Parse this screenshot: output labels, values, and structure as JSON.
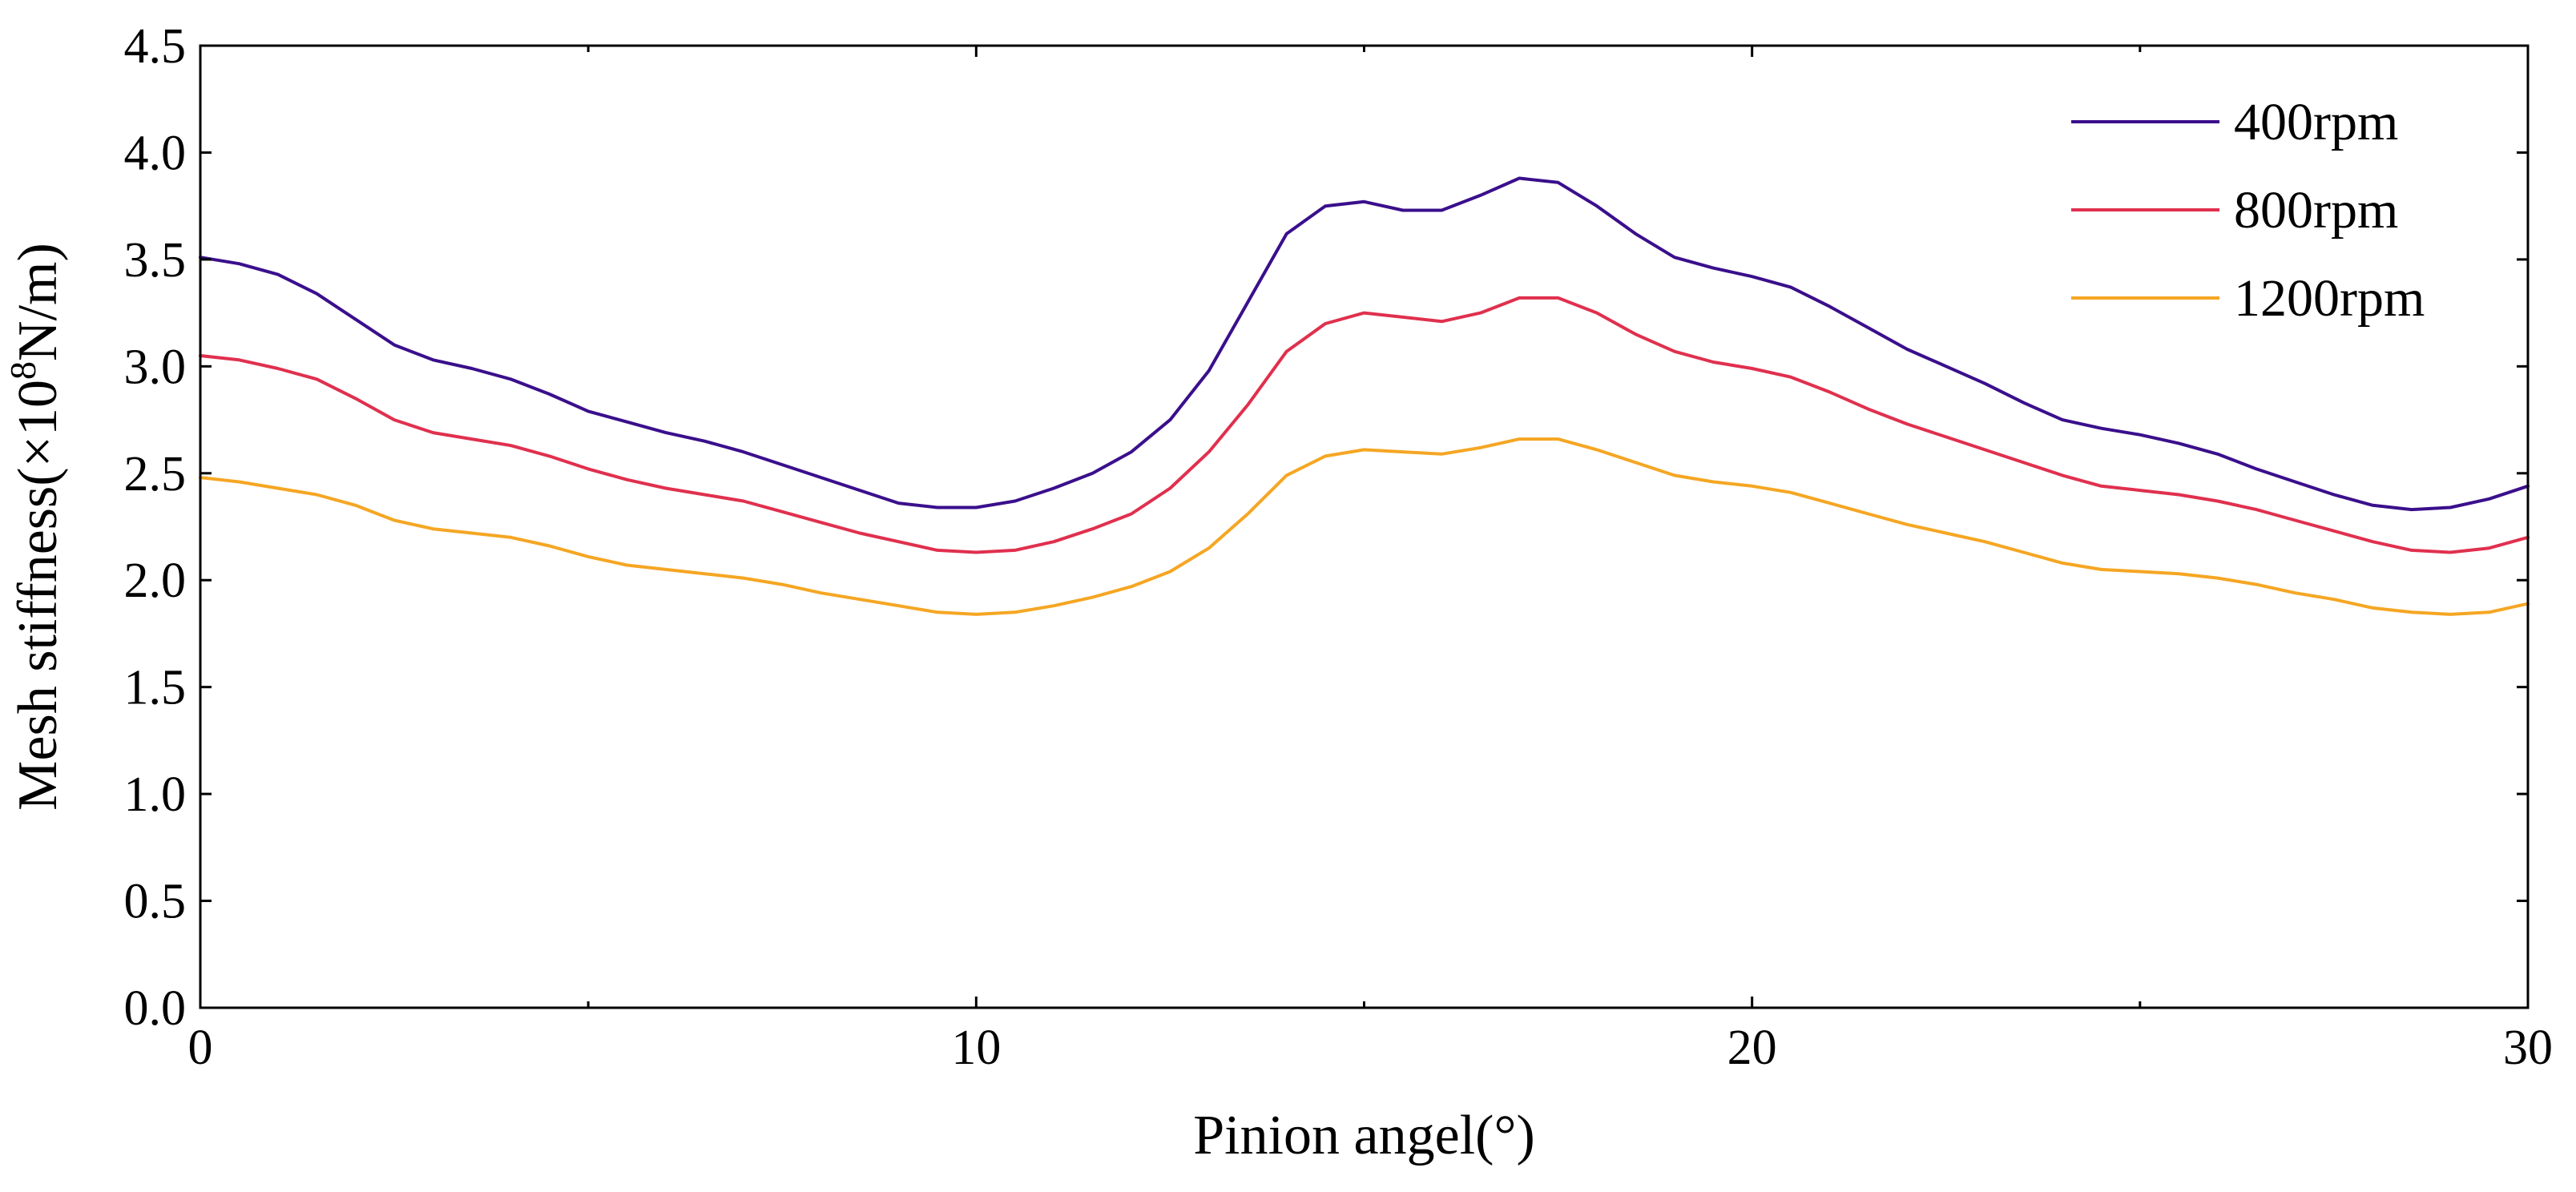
{
  "chart_data": {
    "type": "line",
    "title": "",
    "xlabel": "Pinion angel(°)",
    "ylabel_prefix": "Mesh stiffness(×10",
    "ylabel_exponent": "8",
    "ylabel_suffix": "N/m)",
    "xlim": [
      0,
      30
    ],
    "ylim": [
      0.0,
      4.5
    ],
    "x_ticks": [
      0,
      10,
      20,
      30
    ],
    "x_tick_labels": [
      "0",
      "10",
      "20",
      "30"
    ],
    "y_ticks": [
      0.0,
      0.5,
      1.0,
      1.5,
      2.0,
      2.5,
      3.0,
      3.5,
      4.0,
      4.5
    ],
    "y_tick_labels": [
      "0.0",
      "0.5",
      "1.0",
      "1.5",
      "2.0",
      "2.5",
      "3.0",
      "3.5",
      "4.0",
      "4.5"
    ],
    "grid": false,
    "legend_position": "top-right",
    "x": [
      0,
      0.5,
      1,
      1.5,
      2,
      2.5,
      3,
      3.5,
      4,
      4.5,
      5,
      5.5,
      6,
      6.5,
      7,
      7.5,
      8,
      8.5,
      9,
      9.5,
      10,
      10.5,
      11,
      11.5,
      12,
      12.5,
      13,
      13.5,
      14,
      14.5,
      15,
      15.5,
      16,
      16.5,
      17,
      17.5,
      18,
      18.5,
      19,
      19.5,
      20,
      20.5,
      21,
      21.5,
      22,
      22.5,
      23,
      23.5,
      24,
      24.5,
      25,
      25.5,
      26,
      26.5,
      27,
      27.5,
      28,
      28.5,
      29,
      29.5,
      30
    ],
    "series": [
      {
        "name": "400rpm",
        "color": "#3a0f8c",
        "values": [
          3.51,
          3.48,
          3.43,
          3.34,
          3.22,
          3.1,
          3.03,
          2.99,
          2.94,
          2.87,
          2.79,
          2.74,
          2.69,
          2.65,
          2.6,
          2.54,
          2.48,
          2.42,
          2.36,
          2.34,
          2.34,
          2.37,
          2.43,
          2.5,
          2.6,
          2.75,
          2.98,
          3.3,
          3.62,
          3.75,
          3.77,
          3.73,
          3.73,
          3.8,
          3.88,
          3.86,
          3.75,
          3.62,
          3.51,
          3.46,
          3.42,
          3.37,
          3.28,
          3.18,
          3.08,
          3.0,
          2.92,
          2.83,
          2.75,
          2.71,
          2.68,
          2.64,
          2.59,
          2.52,
          2.46,
          2.4,
          2.35,
          2.33,
          2.34,
          2.38,
          2.44
        ]
      },
      {
        "name": "800rpm",
        "color": "#e0304e",
        "values": [
          3.05,
          3.03,
          2.99,
          2.94,
          2.85,
          2.75,
          2.69,
          2.66,
          2.63,
          2.58,
          2.52,
          2.47,
          2.43,
          2.4,
          2.37,
          2.32,
          2.27,
          2.22,
          2.18,
          2.14,
          2.13,
          2.14,
          2.18,
          2.24,
          2.31,
          2.43,
          2.6,
          2.82,
          3.07,
          3.2,
          3.25,
          3.23,
          3.21,
          3.25,
          3.32,
          3.32,
          3.25,
          3.15,
          3.07,
          3.02,
          2.99,
          2.95,
          2.88,
          2.8,
          2.73,
          2.67,
          2.61,
          2.55,
          2.49,
          2.44,
          2.42,
          2.4,
          2.37,
          2.33,
          2.28,
          2.23,
          2.18,
          2.14,
          2.13,
          2.15,
          2.2
        ]
      },
      {
        "name": "1200rpm",
        "color": "#f5a623",
        "values": [
          2.48,
          2.46,
          2.43,
          2.4,
          2.35,
          2.28,
          2.24,
          2.22,
          2.2,
          2.16,
          2.11,
          2.07,
          2.05,
          2.03,
          2.01,
          1.98,
          1.94,
          1.91,
          1.88,
          1.85,
          1.84,
          1.85,
          1.88,
          1.92,
          1.97,
          2.04,
          2.15,
          2.31,
          2.49,
          2.58,
          2.61,
          2.6,
          2.59,
          2.62,
          2.66,
          2.66,
          2.61,
          2.55,
          2.49,
          2.46,
          2.44,
          2.41,
          2.36,
          2.31,
          2.26,
          2.22,
          2.18,
          2.13,
          2.08,
          2.05,
          2.04,
          2.03,
          2.01,
          1.98,
          1.94,
          1.91,
          1.87,
          1.85,
          1.84,
          1.85,
          1.89
        ]
      }
    ]
  }
}
